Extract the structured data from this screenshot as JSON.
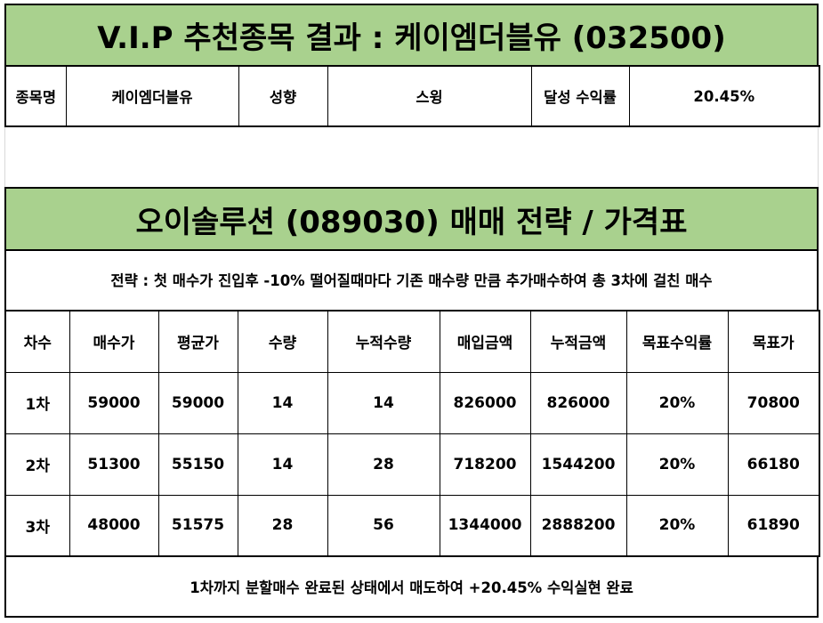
{
  "vip": {
    "title": "V.I.P 추천종목 결과 : 케이엠더블유 (032500)",
    "info": [
      {
        "label": "종목명",
        "value": "케이엠더블유"
      },
      {
        "label": "성향",
        "value": "스윙"
      },
      {
        "label": "달성 수익률",
        "value": "20.45%"
      }
    ]
  },
  "strategy": {
    "title": "오이솔루션 (089030) 매매 전략 / 가격표",
    "description": "전략 : 첫 매수가 진입후 -10% 떨어질때마다 기존 매수량 만큼 추가매수하여 총 3차에 걸친 매수",
    "columns": [
      "차수",
      "매수가",
      "평균가",
      "수량",
      "누적수량",
      "매입금액",
      "누적금액",
      "목표수익률",
      "목표가"
    ],
    "rows": [
      [
        "1차",
        "59000",
        "59000",
        "14",
        "14",
        "826000",
        "826000",
        "20%",
        "70800"
      ],
      [
        "2차",
        "51300",
        "55150",
        "14",
        "28",
        "718200",
        "1544200",
        "20%",
        "66180"
      ],
      [
        "3차",
        "48000",
        "51575",
        "28",
        "56",
        "1344000",
        "2888200",
        "20%",
        "61890"
      ]
    ],
    "footer": "1차까지 분할매수 완료된 상태에서 매도하여 +20.45% 수익실현 완료"
  }
}
